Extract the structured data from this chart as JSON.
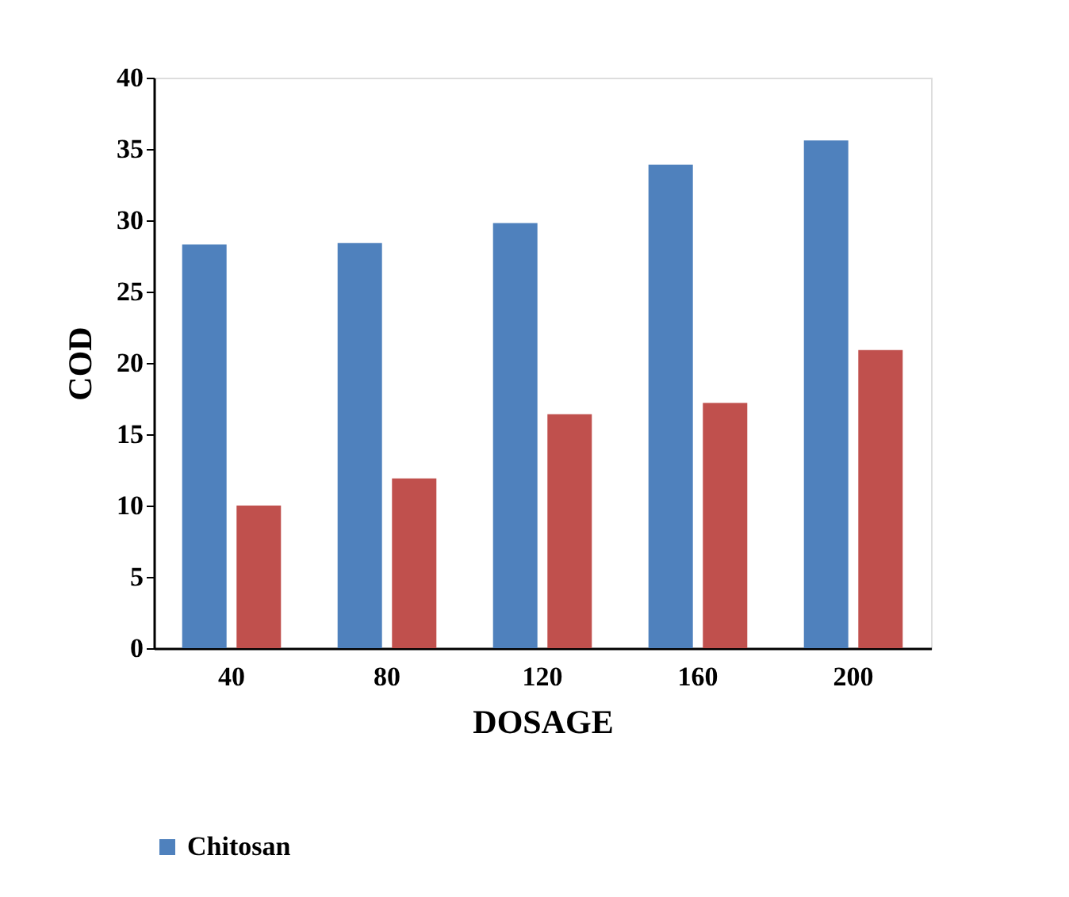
{
  "chart_data": {
    "type": "bar",
    "xlabel": "DOSAGE",
    "ylabel": "COD",
    "categories": [
      "40",
      "80",
      "120",
      "160",
      "200"
    ],
    "series": [
      {
        "name": "Chitosan",
        "color": "#4f81bd",
        "values": [
          28.3,
          28.4,
          29.8,
          33.9,
          35.6
        ]
      },
      {
        "color": "#c0504d",
        "values": [
          10.0,
          11.9,
          16.4,
          17.2,
          20.9
        ]
      }
    ],
    "ylim": [
      0,
      40
    ],
    "yticks": [
      0,
      5,
      10,
      15,
      20,
      25,
      30,
      35,
      40
    ],
    "grid": false,
    "legend": "bottom"
  }
}
